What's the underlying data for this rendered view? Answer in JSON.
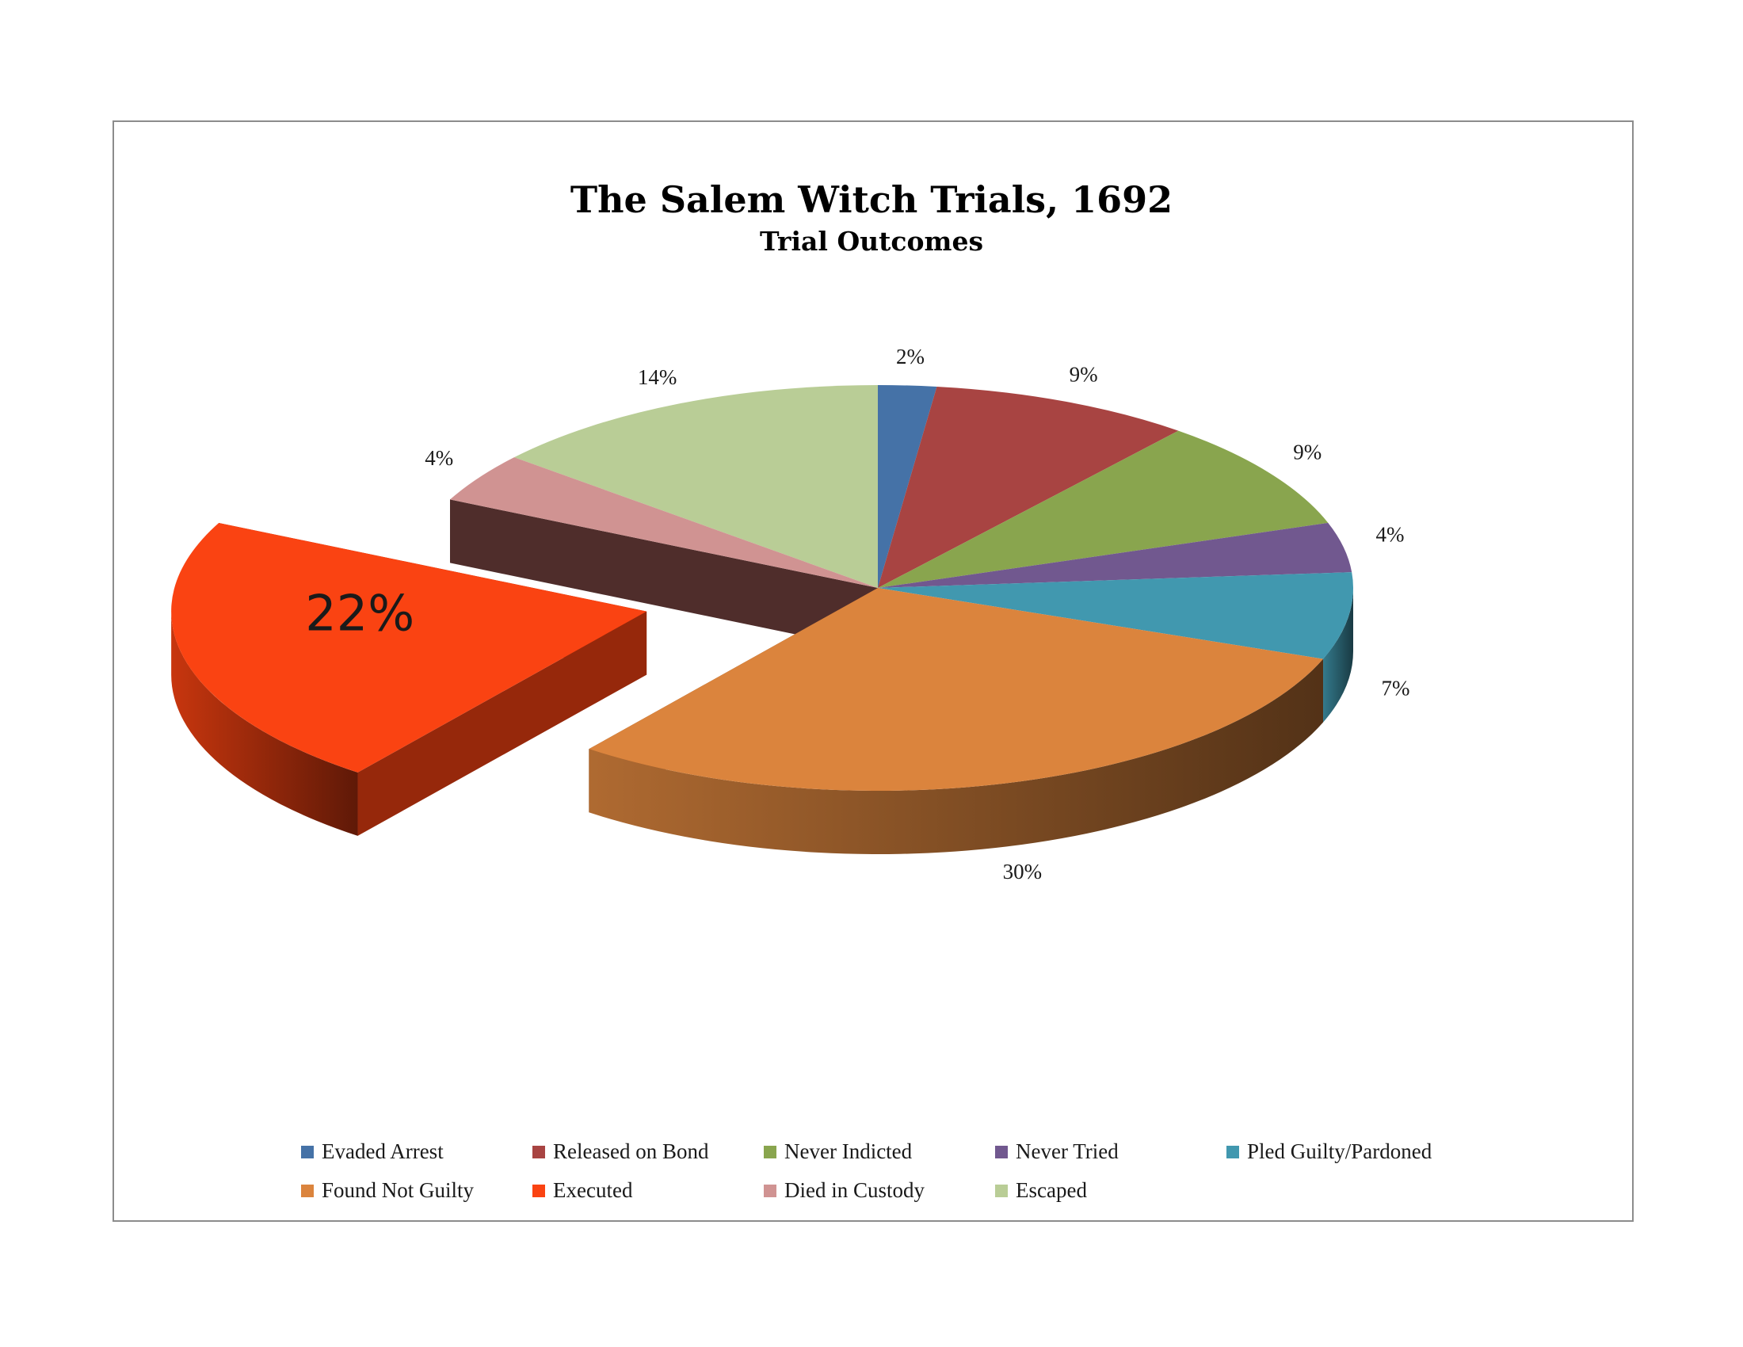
{
  "chart_data": {
    "type": "pie",
    "title": "The Salem Witch Trials, 1692",
    "subtitle": "Trial Outcomes",
    "legend_position": "bottom",
    "exploded": "Executed",
    "slices": [
      {
        "label": "Evaded Arrest",
        "value": 2,
        "display": "2%",
        "color": "#4572a7"
      },
      {
        "label": "Released on Bond",
        "value": 9,
        "display": "9%",
        "color": "#a84442"
      },
      {
        "label": "Never Indicted",
        "value": 9,
        "display": "9%",
        "color": "#89a54e"
      },
      {
        "label": "Never Tried",
        "value": 4,
        "display": "4%",
        "color": "#71588f"
      },
      {
        "label": "Pled Guilty/Pardoned",
        "value": 7,
        "display": "7%",
        "color": "#4198af"
      },
      {
        "label": "Found Not Guilty",
        "value": 30,
        "display": "30%",
        "color": "#db843d"
      },
      {
        "label": "Executed",
        "value": 22,
        "display": "22%",
        "color": "#fa4312"
      },
      {
        "label": "Died in Custody",
        "value": 4,
        "display": "4%",
        "color": "#d09392"
      },
      {
        "label": "Escaped",
        "value": 14,
        "display": "14%",
        "color": "#b9cd96"
      }
    ]
  }
}
